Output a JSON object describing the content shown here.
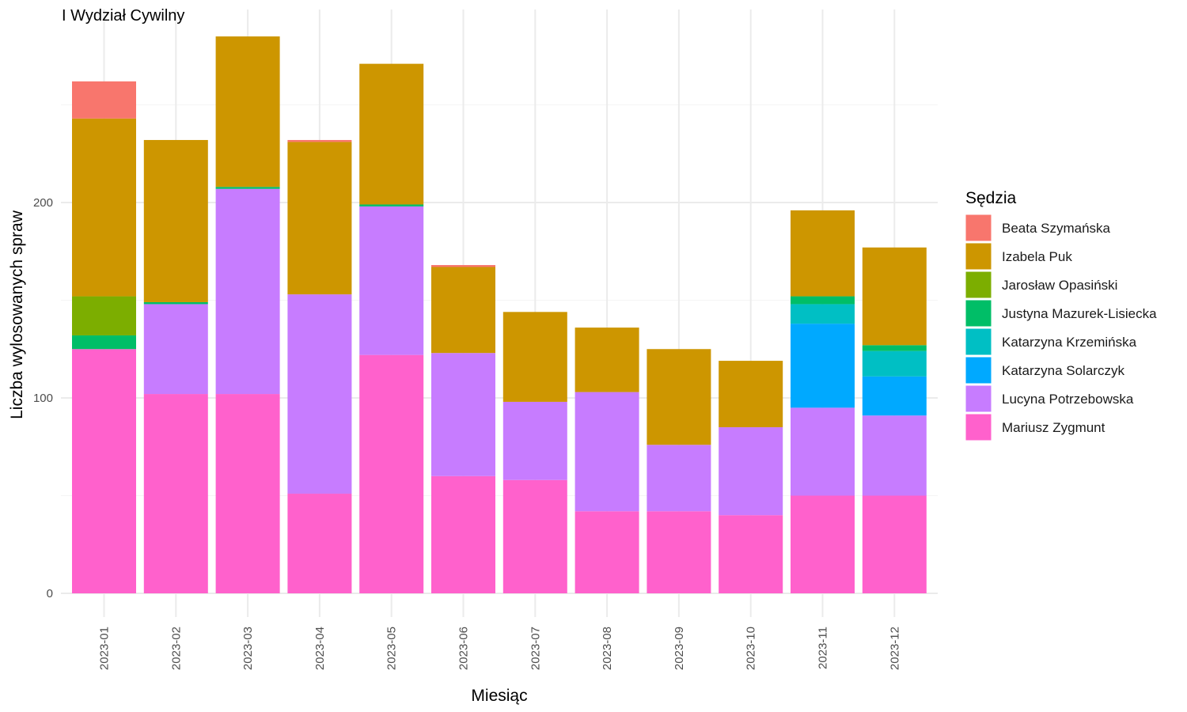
{
  "chart_data": {
    "type": "bar",
    "stacked": true,
    "title": "I Wydział Cywilny",
    "xlabel": "Miesiąc",
    "ylabel": "Liczba wylosowanych spraw",
    "ylim": [
      0,
      285
    ],
    "yticks": [
      0,
      100,
      200
    ],
    "grid": true,
    "legend_title": "Sędzia",
    "legend_position": "right",
    "categories": [
      "2023-01",
      "2023-02",
      "2023-03",
      "2023-04",
      "2023-05",
      "2023-06",
      "2023-07",
      "2023-08",
      "2023-09",
      "2023-10",
      "2023-11",
      "2023-12"
    ],
    "series": [
      {
        "name": "Beata Szymańska",
        "color": "#F8766D",
        "values": [
          19,
          0,
          0,
          1,
          0,
          1,
          0,
          0,
          0,
          0,
          0,
          0
        ]
      },
      {
        "name": "Izabela Puk",
        "color": "#CD9600",
        "values": [
          91,
          83,
          77,
          78,
          72,
          44,
          46,
          33,
          49,
          34,
          44,
          50
        ]
      },
      {
        "name": "Jarosław Opasiński",
        "color": "#7CAE00",
        "values": [
          20,
          0,
          0,
          0,
          0,
          0,
          0,
          0,
          0,
          0,
          0,
          0
        ]
      },
      {
        "name": "Justyna Mazurek-Lisiecka",
        "color": "#00BE67",
        "values": [
          7,
          1,
          1,
          0,
          1,
          0,
          0,
          0,
          0,
          0,
          4,
          3
        ]
      },
      {
        "name": "Katarzyna Krzemińska",
        "color": "#00BFC4",
        "values": [
          0,
          0,
          0,
          0,
          0,
          0,
          0,
          0,
          0,
          0,
          10,
          13
        ]
      },
      {
        "name": "Katarzyna Solarczyk",
        "color": "#00A9FF",
        "values": [
          0,
          0,
          0,
          0,
          0,
          0,
          0,
          0,
          0,
          0,
          43,
          20
        ]
      },
      {
        "name": "Lucyna Potrzebowska",
        "color": "#C77CFF",
        "values": [
          0,
          46,
          105,
          102,
          76,
          63,
          40,
          61,
          34,
          45,
          45,
          41
        ]
      },
      {
        "name": "Mariusz Zygmunt",
        "color": "#FF61CC",
        "values": [
          125,
          102,
          102,
          51,
          122,
          60,
          58,
          42,
          42,
          40,
          50,
          50
        ]
      }
    ]
  }
}
